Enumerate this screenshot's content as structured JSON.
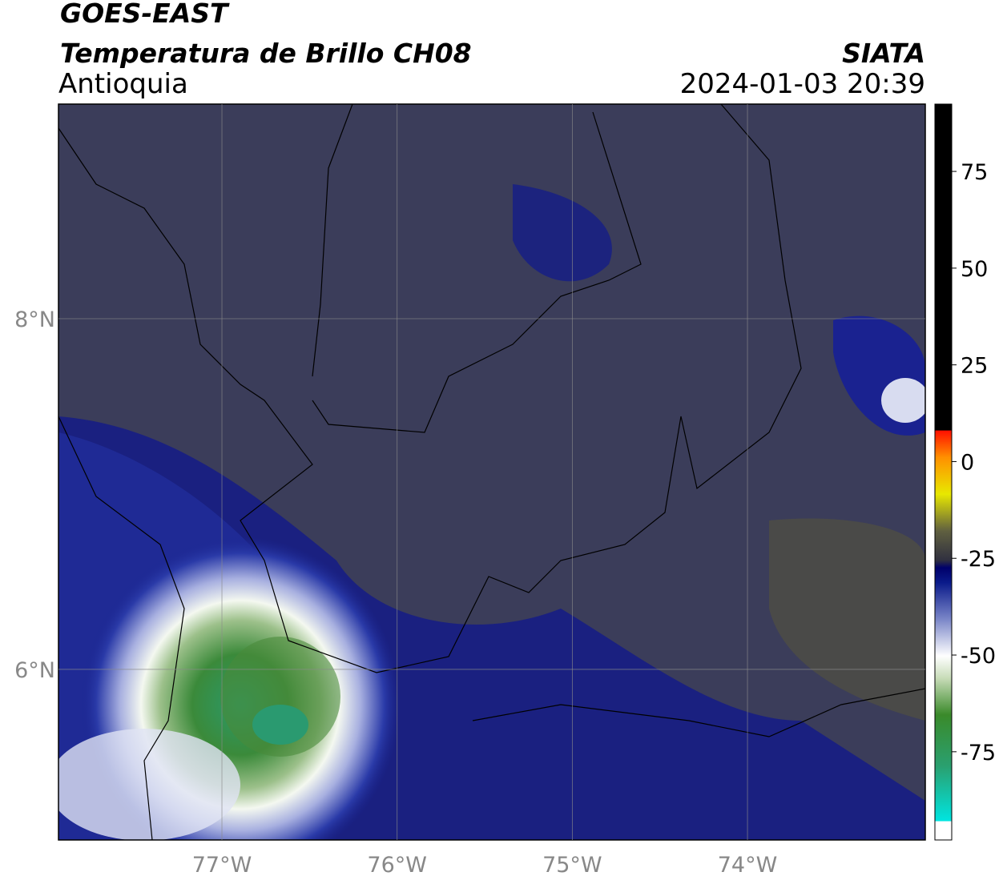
{
  "header": {
    "title": "GOES-EAST",
    "subtitle": "Temperatura de Brillo CH08",
    "region": "Antioquia",
    "source": "SIATA",
    "datetime": "2024-01-03 20:39"
  },
  "map": {
    "xlim": [
      -77.933,
      -72.985
    ],
    "ylim": [
      5.027,
      9.224
    ],
    "xticks": [
      {
        "value": -77,
        "label": "77°W"
      },
      {
        "value": -76,
        "label": "76°W"
      },
      {
        "value": -75,
        "label": "75°W"
      },
      {
        "value": -74,
        "label": "74°W"
      }
    ],
    "yticks": [
      {
        "value": 8,
        "label": "8°N"
      },
      {
        "value": 6,
        "label": "6°N"
      }
    ],
    "grid": true
  },
  "colorbar": {
    "lim": [
      -97.8,
      92.4
    ],
    "ticks": [
      75,
      50,
      25,
      0,
      -25,
      -50,
      -75
    ]
  }
}
